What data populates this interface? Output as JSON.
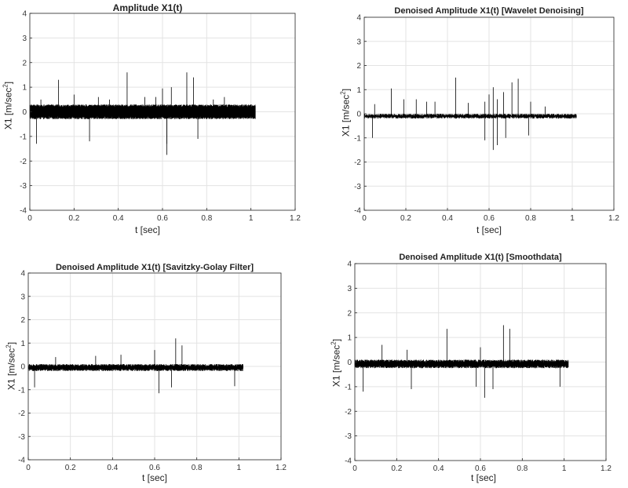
{
  "charts": [
    {
      "title": "Amplitude X1(t)",
      "ylabel_main": "X1 [m/sec",
      "ylabel_sup": "2",
      "ylabel_end": "]",
      "xlabel": "t [sec]"
    },
    {
      "title": "Denoised Amplitude X1(t) [Wavelet Denoising]",
      "ylabel_main": "X1 [m/sec",
      "ylabel_sup": "2",
      "ylabel_end": "]",
      "xlabel": "t [sec]"
    },
    {
      "title": "Denoised Amplitude X1(t) [Savitzky-Golay Filter]",
      "ylabel_main": "X1 [m/sec",
      "ylabel_sup": "2",
      "ylabel_end": "]",
      "xlabel": "t [sec]"
    },
    {
      "title": "Denoised Amplitude X1(t) [Smoothdata]",
      "ylabel_main": "X1 [m/sec",
      "ylabel_sup": "2",
      "ylabel_end": "]",
      "xlabel": "t [sec]"
    }
  ],
  "chart_data": [
    {
      "type": "line",
      "title": "Amplitude X1(t)",
      "xlabel": "t [sec]",
      "ylabel": "X1 [m/sec^2]",
      "xlim": [
        0,
        1.2
      ],
      "ylim": [
        -4,
        4
      ],
      "xticks": [
        "0",
        "0.2",
        "0.4",
        "0.6",
        "0.8",
        "1",
        "1.2"
      ],
      "yticks": [
        "-4",
        "-3",
        "-2",
        "-1",
        "0",
        "1",
        "2",
        "3",
        "4"
      ],
      "grid": true,
      "color": "#000000",
      "signal": {
        "t_start": 0,
        "t_end": 1.02,
        "baseline": -0.05,
        "band_min": -0.3,
        "band_max": 0.3,
        "spikes_t": [
          0.05,
          0.13,
          0.2,
          0.31,
          0.36,
          0.44,
          0.52,
          0.57,
          0.6,
          0.62,
          0.64,
          0.71,
          0.74,
          0.83,
          0.88,
          0.03,
          0.27,
          0.62,
          0.76
        ],
        "spikes_v": [
          0.5,
          1.3,
          0.7,
          0.6,
          0.5,
          1.6,
          0.6,
          0.6,
          0.95,
          -1.75,
          1.0,
          1.6,
          1.4,
          0.5,
          0.6,
          -1.3,
          -1.2,
          -1.3,
          -1.1
        ]
      }
    },
    {
      "type": "line",
      "title": "Denoised Amplitude X1(t) [Wavelet Denoising]",
      "xlabel": "t [sec]",
      "ylabel": "X1 [m/sec^2]",
      "xlim": [
        0,
        1.2
      ],
      "ylim": [
        -4,
        4
      ],
      "xticks": [
        "0",
        "0.2",
        "0.4",
        "0.6",
        "0.8",
        "1",
        "1.2"
      ],
      "yticks": [
        "-4",
        "-3",
        "-2",
        "-1",
        "0",
        "1",
        "2",
        "3",
        "4"
      ],
      "grid": true,
      "color": "#000000",
      "signal": {
        "t_start": 0,
        "t_end": 1.02,
        "baseline": -0.1,
        "band_min": -0.2,
        "band_max": 0.0,
        "spikes_t": [
          0.05,
          0.13,
          0.19,
          0.25,
          0.3,
          0.34,
          0.44,
          0.5,
          0.58,
          0.6,
          0.62,
          0.64,
          0.67,
          0.71,
          0.74,
          0.8,
          0.87,
          0.04,
          0.58,
          0.62,
          0.64,
          0.68,
          0.79
        ],
        "spikes_v": [
          0.4,
          1.05,
          0.6,
          0.6,
          0.5,
          0.5,
          1.5,
          0.45,
          0.5,
          0.8,
          1.1,
          0.6,
          0.9,
          1.3,
          1.45,
          0.5,
          0.3,
          -1.0,
          -1.1,
          -1.5,
          -1.3,
          -1.0,
          -0.9
        ]
      }
    },
    {
      "type": "line",
      "title": "Denoised Amplitude X1(t) [Savitzky-Golay Filter]",
      "xlabel": "t [sec]",
      "ylabel": "X1 [m/sec^2]",
      "xlim": [
        0,
        1.2
      ],
      "ylim": [
        -4,
        4
      ],
      "xticks": [
        "0",
        "0.2",
        "0.4",
        "0.6",
        "0.8",
        "1",
        "1.2"
      ],
      "yticks": [
        "-4",
        "-3",
        "-2",
        "-1",
        "0",
        "1",
        "2",
        "3",
        "4"
      ],
      "grid": true,
      "color": "#000000",
      "signal": {
        "t_start": 0,
        "t_end": 1.02,
        "baseline": -0.05,
        "band_min": -0.2,
        "band_max": 0.1,
        "spikes_t": [
          0.13,
          0.32,
          0.44,
          0.6,
          0.7,
          0.73,
          0.03,
          0.62,
          0.68,
          0.98
        ],
        "spikes_v": [
          0.4,
          0.45,
          0.5,
          0.7,
          1.2,
          0.9,
          -0.9,
          -1.15,
          -0.9,
          -0.85
        ]
      }
    },
    {
      "type": "line",
      "title": "Denoised Amplitude X1(t) [Smoothdata]",
      "xlabel": "t [sec]",
      "ylabel": "X1 [m/sec^2]",
      "xlim": [
        0,
        1.2
      ],
      "ylim": [
        -4,
        4
      ],
      "xticks": [
        "0",
        "0.2",
        "0.4",
        "0.6",
        "0.8",
        "1",
        "1.2"
      ],
      "yticks": [
        "-4",
        "-3",
        "-2",
        "-1",
        "0",
        "1",
        "2",
        "3",
        "4"
      ],
      "grid": true,
      "color": "#000000",
      "signal": {
        "t_start": 0,
        "t_end": 1.02,
        "baseline": -0.1,
        "band_min": -0.25,
        "band_max": 0.1,
        "spikes_t": [
          0.13,
          0.25,
          0.44,
          0.6,
          0.71,
          0.74,
          0.04,
          0.27,
          0.58,
          0.62,
          0.66,
          0.98
        ],
        "spikes_v": [
          0.7,
          0.5,
          1.35,
          0.6,
          1.5,
          1.35,
          -1.2,
          -1.1,
          -1.0,
          -1.45,
          -1.1,
          -1.0
        ]
      }
    }
  ]
}
